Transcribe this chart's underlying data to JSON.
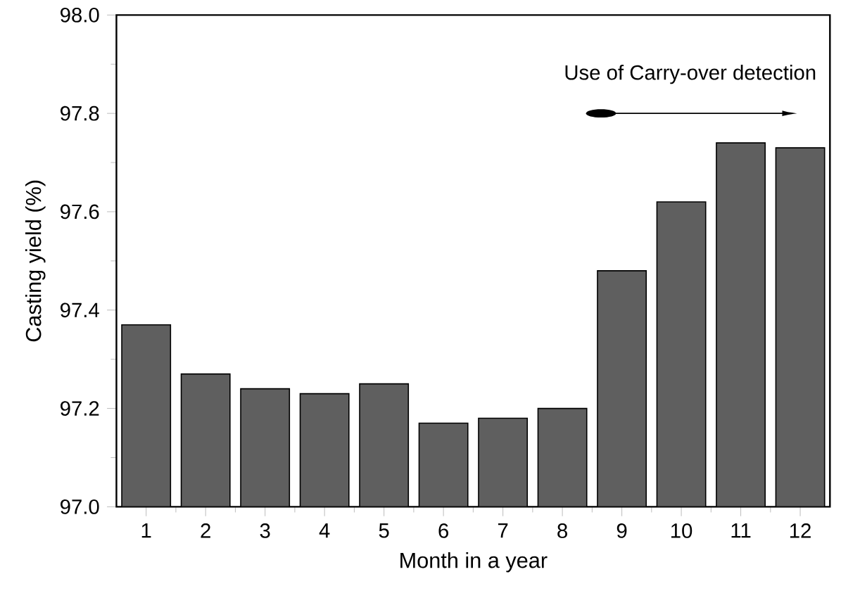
{
  "chart_data": {
    "type": "bar",
    "xlabel": "Month in a year",
    "ylabel": "Casting yield (%)",
    "categories": [
      "1",
      "2",
      "3",
      "4",
      "5",
      "6",
      "7",
      "8",
      "9",
      "10",
      "11",
      "12"
    ],
    "values": [
      97.37,
      97.27,
      97.24,
      97.23,
      97.25,
      97.17,
      97.18,
      97.2,
      97.48,
      97.62,
      97.74,
      97.73
    ],
    "color": "#5f5f5f",
    "ylim": [
      97.0,
      98.0
    ],
    "yticks": [
      {
        "value": 97.0,
        "label": "97.0"
      },
      {
        "value": 97.2,
        "label": "97.2"
      },
      {
        "value": 97.4,
        "label": "97.4"
      },
      {
        "value": 97.6,
        "label": "97.6"
      },
      {
        "value": 97.8,
        "label": "97.8"
      },
      {
        "value": 98.0,
        "label": "98.0"
      }
    ],
    "annotations": [
      "Use of Carry-over detection"
    ],
    "grid": false
  }
}
